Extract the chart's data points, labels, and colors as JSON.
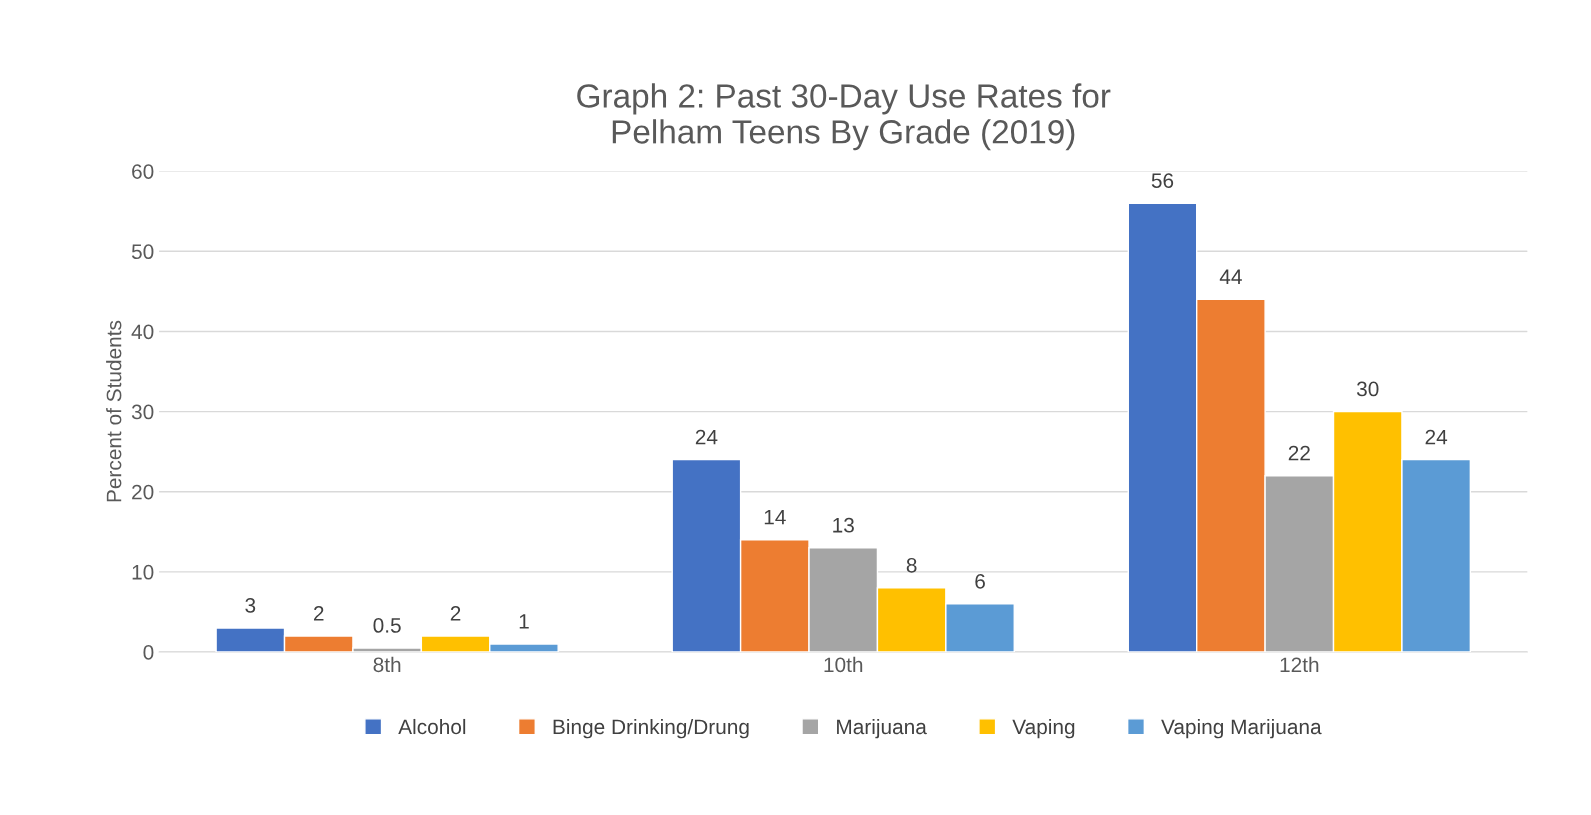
{
  "chart_data": {
    "type": "bar",
    "title": "Graph 2: Past 30-Day Use Rates for\nPelham Teens By Grade (2019)",
    "ylabel": "Percent of Students",
    "categories": [
      "8th",
      "10th",
      "12th"
    ],
    "series": [
      {
        "name": "Alcohol",
        "color": "#4472c4",
        "values": [
          3,
          24,
          56
        ]
      },
      {
        "name": "Binge Drinking/Drung",
        "color": "#ed7d31",
        "values": [
          2,
          14,
          44
        ]
      },
      {
        "name": "Marijuana",
        "color": "#a5a5a5",
        "values": [
          0.5,
          13,
          22
        ]
      },
      {
        "name": "Vaping",
        "color": "#ffc000",
        "values": [
          2,
          8,
          30
        ]
      },
      {
        "name": "Vaping Marijuana",
        "color": "#5b9bd5",
        "values": [
          1,
          6,
          24
        ]
      }
    ],
    "ylim": [
      0,
      60
    ],
    "yticks": [
      0,
      10,
      20,
      30,
      40,
      50,
      60
    ],
    "grid": "y",
    "legend": "bottom",
    "data_labels": true
  }
}
